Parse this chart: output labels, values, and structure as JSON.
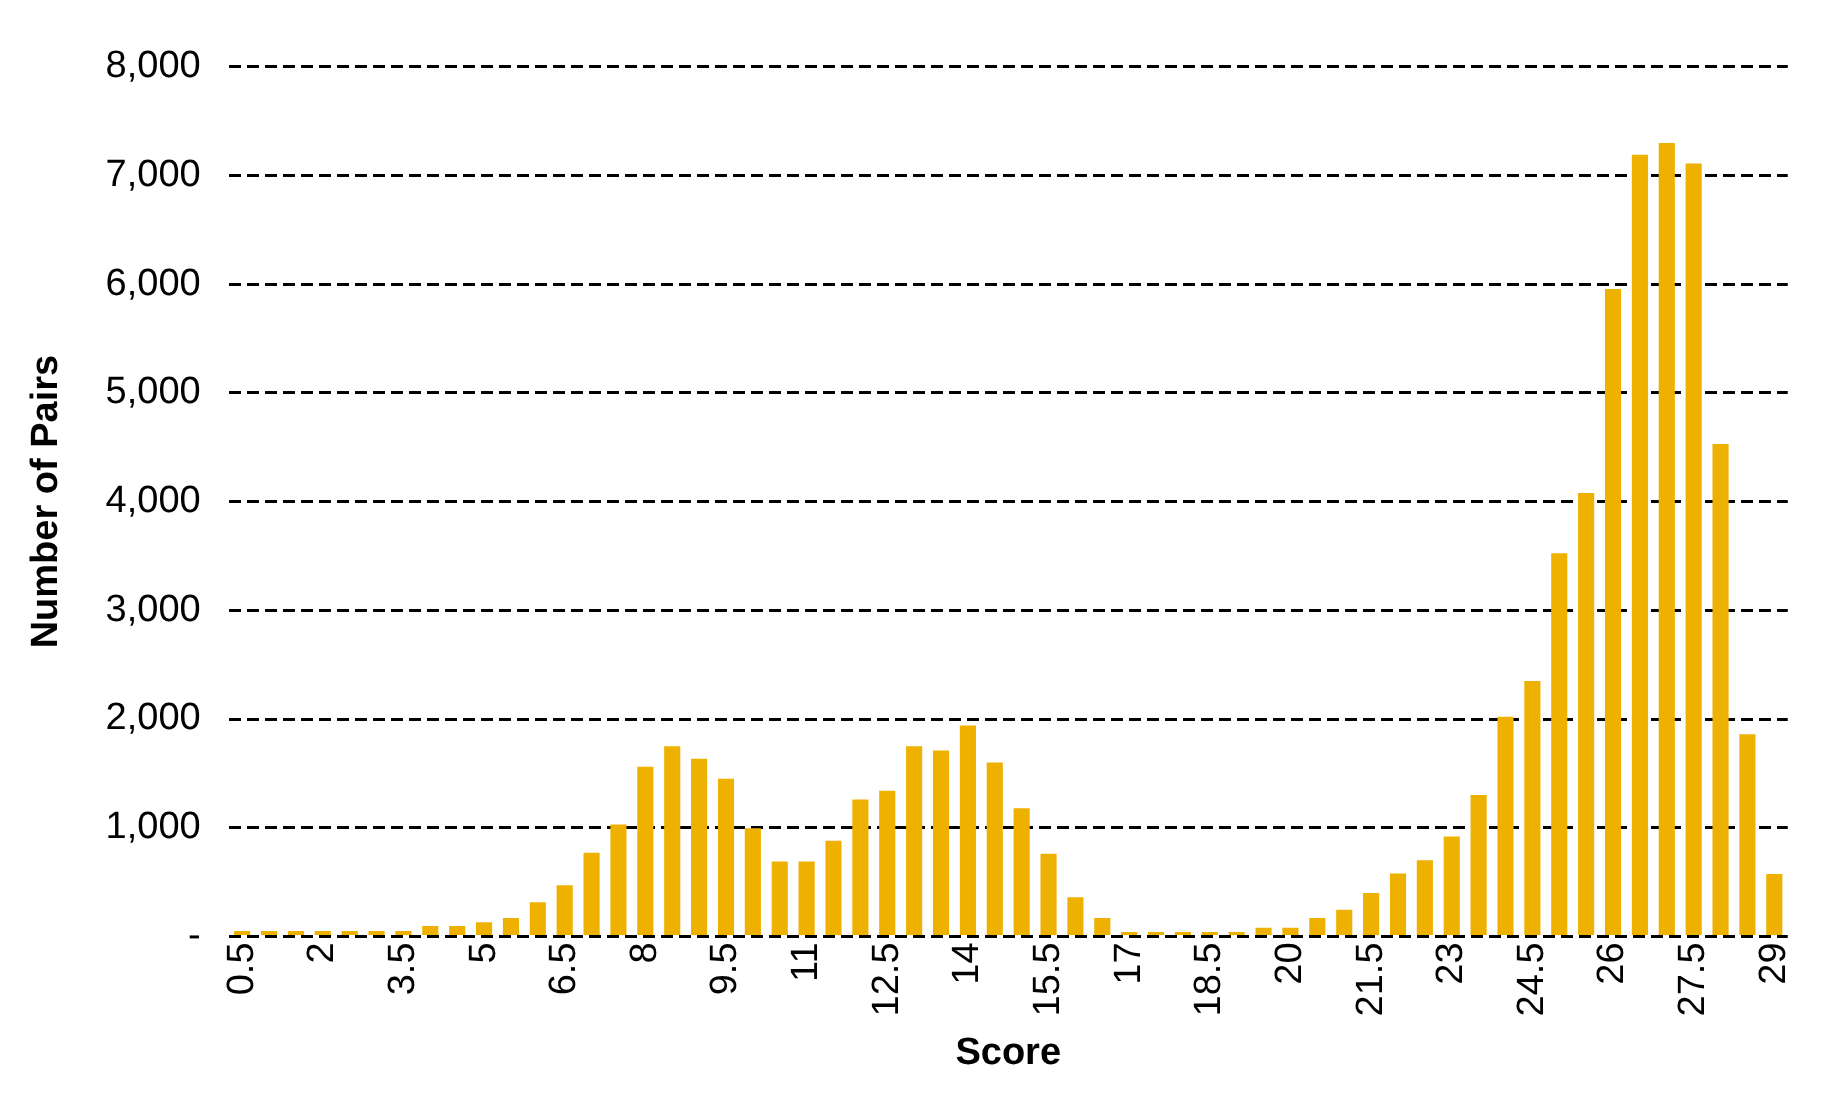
{
  "chart_data": {
    "type": "bar",
    "xlabel": "Score",
    "ylabel": "Number of Pairs",
    "categories": [
      "0.5",
      null,
      null,
      "2",
      null,
      null,
      "3.5",
      null,
      null,
      "5",
      null,
      null,
      "6.5",
      null,
      null,
      "8",
      null,
      null,
      "9.5",
      null,
      null,
      "11",
      null,
      null,
      "12.5",
      null,
      null,
      "14",
      null,
      null,
      "15.5",
      null,
      null,
      "17",
      null,
      null,
      "18.5",
      null,
      null,
      "20",
      null,
      null,
      "21.5",
      null,
      null,
      "23",
      null,
      null,
      "24.5",
      null,
      null,
      "26",
      null,
      null,
      "27.5",
      null,
      null,
      "29"
    ],
    "values": [
      50,
      50,
      50,
      50,
      50,
      50,
      50,
      95,
      95,
      130,
      170,
      315,
      470,
      770,
      1030,
      1560,
      1750,
      1635,
      1450,
      995,
      690,
      690,
      880,
      1260,
      1340,
      1750,
      1710,
      1940,
      1600,
      1180,
      760,
      360,
      170,
      40,
      40,
      40,
      40,
      40,
      80,
      80,
      170,
      245,
      400,
      580,
      700,
      920,
      1300,
      2020,
      2350,
      3525,
      4080,
      5956,
      7190,
      7300,
      7110,
      4530,
      1860,
      575
    ],
    "color": "#efb100",
    "ylim": [
      0,
      8000
    ],
    "yticks": [
      {
        "value": 0,
        "label": "-"
      },
      {
        "value": 1000,
        "label": "1,000"
      },
      {
        "value": 2000,
        "label": "2,000"
      },
      {
        "value": 3000,
        "label": "3,000"
      },
      {
        "value": 4000,
        "label": "4,000"
      },
      {
        "value": 5000,
        "label": "5,000"
      },
      {
        "value": 6000,
        "label": "6,000"
      },
      {
        "value": 7000,
        "label": "7,000"
      },
      {
        "value": 8000,
        "label": "8,000"
      }
    ],
    "grid": "y"
  }
}
